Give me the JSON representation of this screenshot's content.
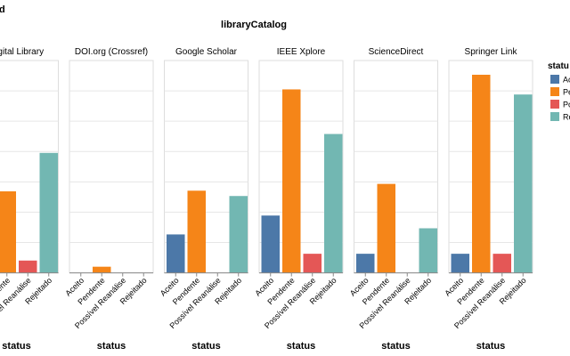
{
  "chart_data": {
    "type": "bar",
    "header_title": "libraryCatalog",
    "corner_fragment": "d",
    "facet_field": "libraryCatalog",
    "xlabel": "status",
    "color_field": "status",
    "legend_placement": "right",
    "grid": true,
    "categories": [
      "Aceito",
      "Pendente",
      "Possível Reanálise",
      "Rejeitado"
    ],
    "category_colors": [
      "#4c78a8",
      "#f58518",
      "#e45756",
      "#72b7b2"
    ],
    "legend": {
      "title": "statu",
      "entries": [
        "Ac",
        "Pe",
        "Po",
        "Re"
      ]
    },
    "ylim": [
      0,
      1
    ],
    "facets": [
      {
        "title": "Digital Library",
        "values": [
          0,
          0.384,
          0.058,
          0.565
        ]
      },
      {
        "title": "DOI.org (Crossref)",
        "values": [
          0,
          0.029,
          0,
          0
        ]
      },
      {
        "title": "Google Scholar",
        "values": [
          0.181,
          0.387,
          0,
          0.362
        ]
      },
      {
        "title": "IEEE Xplore",
        "values": [
          0.27,
          0.864,
          0.09,
          0.654
        ]
      },
      {
        "title": "ScienceDirect",
        "values": [
          0.09,
          0.419,
          0,
          0.21
        ]
      },
      {
        "title": "Springer Link",
        "values": [
          0.09,
          0.933,
          0.09,
          0.84
        ]
      }
    ]
  }
}
